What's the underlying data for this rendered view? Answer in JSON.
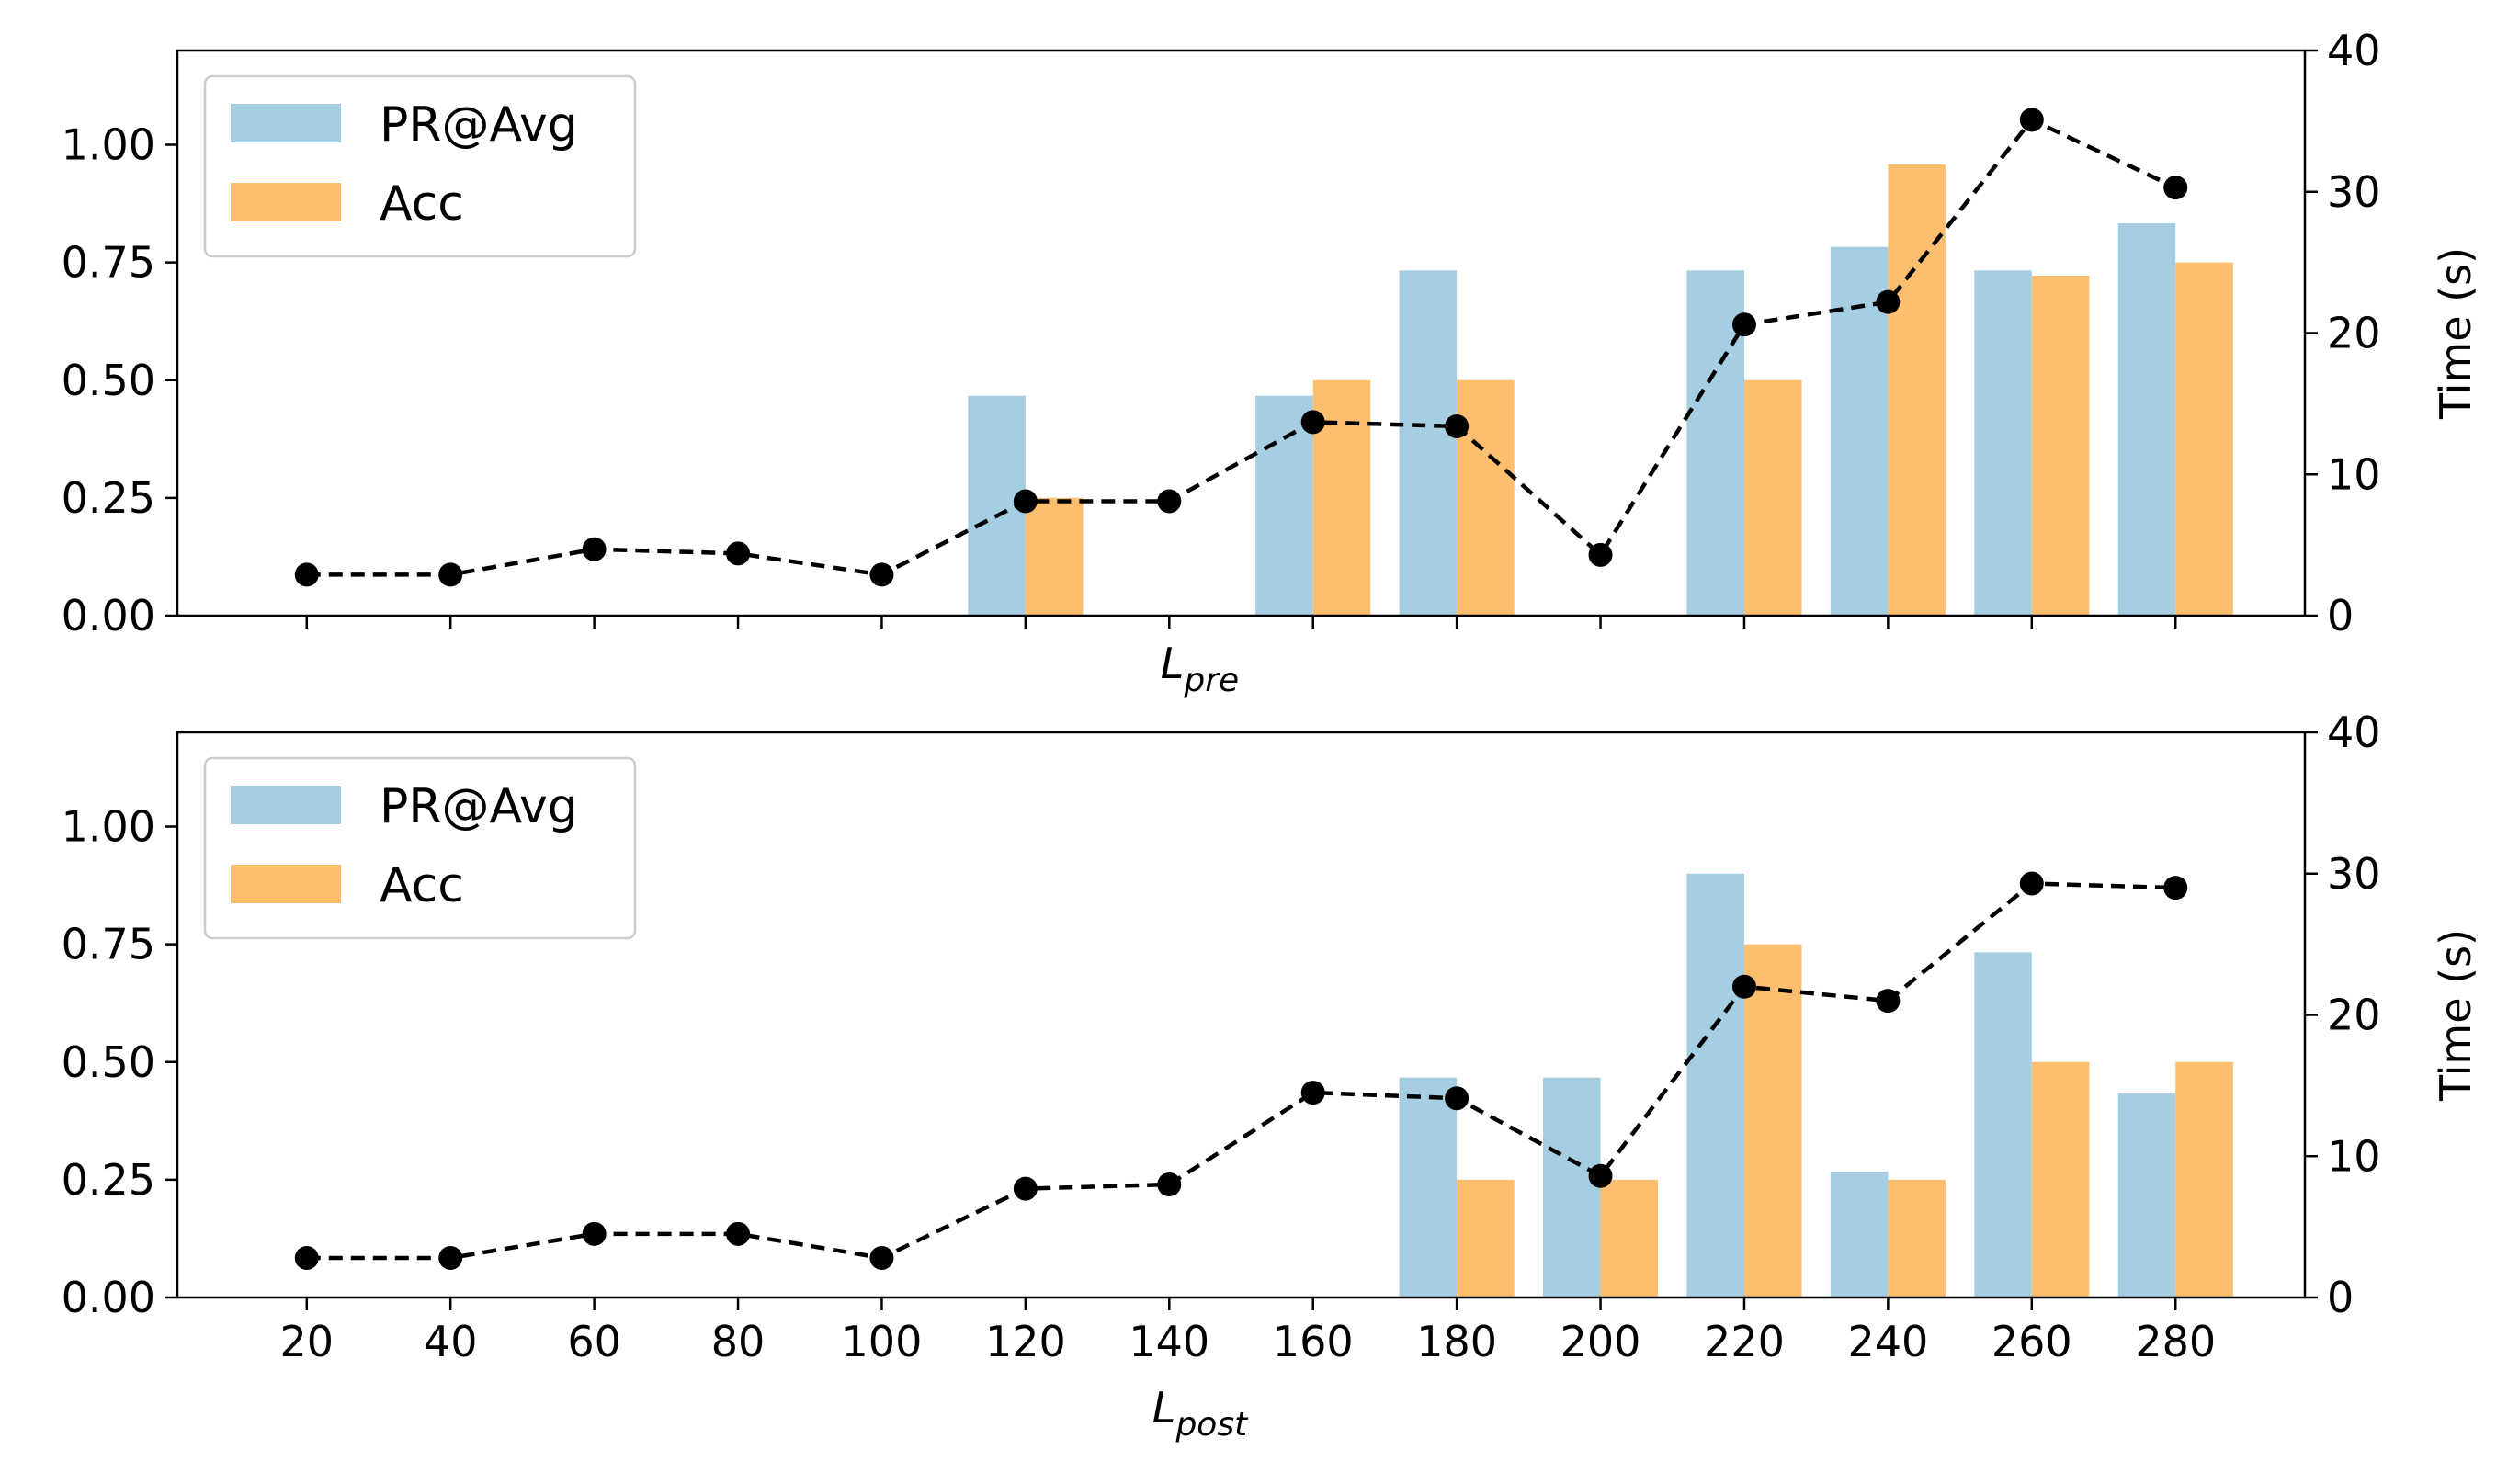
{
  "colors": {
    "pr_avg": "#a6cee3",
    "acc": "#fdbf6f",
    "time": "#000000"
  },
  "chart_data": [
    {
      "type": "bar",
      "x": [
        20,
        40,
        60,
        80,
        100,
        120,
        140,
        160,
        180,
        200,
        220,
        240,
        260,
        280
      ],
      "xlabel": "L",
      "xlabel_sub": "pre",
      "show_x_tick_labels": false,
      "ylim": [
        0,
        1.2
      ],
      "yticks": [
        "0.00",
        "0.25",
        "0.50",
        "0.75",
        "1.00"
      ],
      "y2label": "Time (s)",
      "y2lim": [
        0,
        40
      ],
      "y2ticks": [
        "0",
        "10",
        "20",
        "30",
        "40"
      ],
      "legend": "upper-left",
      "grid": false,
      "series": [
        {
          "name": "PR@Avg",
          "type": "bar",
          "values": [
            0,
            0,
            0,
            0,
            0,
            0.467,
            0,
            0.467,
            0.733,
            0,
            0.733,
            0.783,
            0.733,
            0.833
          ]
        },
        {
          "name": "Acc",
          "type": "bar",
          "values": [
            0,
            0,
            0,
            0,
            0,
            0.25,
            0,
            0.5,
            0.5,
            0,
            0.5,
            0.958,
            0.722,
            0.75
          ]
        },
        {
          "type": "line",
          "axis": "right",
          "values": [
            2.9,
            2.9,
            4.7,
            4.4,
            2.9,
            8.1,
            8.1,
            13.7,
            13.4,
            4.3,
            20.6,
            22.2,
            35.1,
            30.3
          ]
        }
      ]
    },
    {
      "type": "bar",
      "x": [
        20,
        40,
        60,
        80,
        100,
        120,
        140,
        160,
        180,
        200,
        220,
        240,
        260,
        280
      ],
      "xlabel": "L",
      "xlabel_sub": "post",
      "show_x_tick_labels": true,
      "ylim": [
        0,
        1.2
      ],
      "yticks": [
        "0.00",
        "0.25",
        "0.50",
        "0.75",
        "1.00"
      ],
      "y2label": "Time (s)",
      "y2lim": [
        0,
        40
      ],
      "y2ticks": [
        "0",
        "10",
        "20",
        "30",
        "40"
      ],
      "legend": "upper-left",
      "grid": false,
      "series": [
        {
          "name": "PR@Avg",
          "type": "bar",
          "values": [
            0,
            0,
            0,
            0,
            0,
            0,
            0,
            0,
            0.467,
            0.467,
            0.9,
            0.267,
            0.733,
            0.433
          ]
        },
        {
          "name": "Acc",
          "type": "bar",
          "values": [
            0,
            0,
            0,
            0,
            0,
            0,
            0,
            0,
            0.25,
            0.25,
            0.75,
            0.25,
            0.5,
            0.5
          ]
        },
        {
          "type": "line",
          "axis": "right",
          "values": [
            2.8,
            2.8,
            4.5,
            4.5,
            2.8,
            7.7,
            8.0,
            14.5,
            14.1,
            8.6,
            22.0,
            21.0,
            29.3,
            29.0
          ]
        }
      ]
    }
  ]
}
